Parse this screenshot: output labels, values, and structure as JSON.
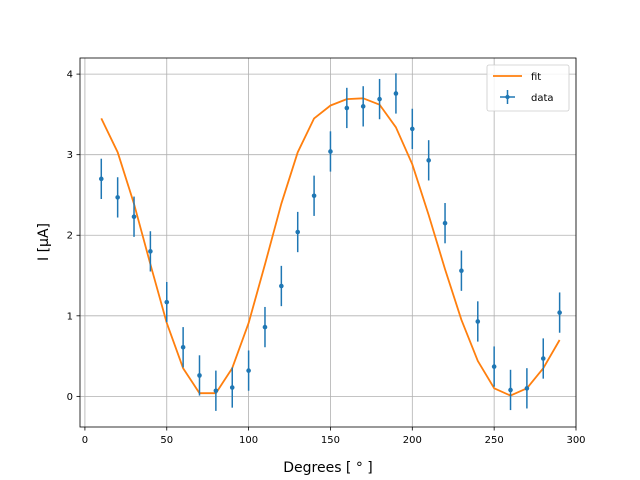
{
  "chart_data": {
    "type": "scatter",
    "xlabel": "Degrees [ ° ]",
    "ylabel": "I [μA]",
    "xlim": [
      -3,
      300
    ],
    "ylim": [
      -0.38,
      4.2
    ],
    "xticks": [
      0,
      50,
      100,
      150,
      200,
      250,
      300
    ],
    "yticks": [
      0,
      1,
      2,
      3,
      4
    ],
    "grid": true,
    "legend_position": "top-right",
    "series": [
      {
        "name": "data",
        "kind": "errorbar",
        "color": "#1f77b4",
        "x": [
          10,
          20,
          30,
          40,
          50,
          60,
          70,
          80,
          90,
          100,
          110,
          120,
          130,
          140,
          150,
          160,
          170,
          180,
          190,
          200,
          210,
          220,
          230,
          240,
          250,
          260,
          270,
          280,
          290
        ],
        "y": [
          2.7,
          2.47,
          2.23,
          1.8,
          1.17,
          0.61,
          0.26,
          0.07,
          0.11,
          0.32,
          0.86,
          1.37,
          2.04,
          2.49,
          3.04,
          3.58,
          3.6,
          3.69,
          3.76,
          3.32,
          2.93,
          2.15,
          1.56,
          0.93,
          0.37,
          0.08,
          0.1,
          0.47,
          1.04
        ],
        "yerr": 0.25
      },
      {
        "name": "fit",
        "kind": "line",
        "color": "#ff7f0e",
        "x": [
          10,
          20,
          30,
          40,
          50,
          60,
          70,
          80,
          90,
          100,
          110,
          120,
          130,
          140,
          150,
          160,
          170,
          180,
          190,
          200,
          210,
          220,
          230,
          240,
          250,
          260,
          270,
          280,
          290
        ],
        "y": [
          3.45,
          3.03,
          2.39,
          1.64,
          0.91,
          0.35,
          0.04,
          0.04,
          0.35,
          0.91,
          1.64,
          2.39,
          3.03,
          3.45,
          3.61,
          3.69,
          3.7,
          3.62,
          3.34,
          2.88,
          2.25,
          1.58,
          0.95,
          0.44,
          0.1,
          0.01,
          0.1,
          0.35,
          0.7
        ]
      }
    ]
  }
}
